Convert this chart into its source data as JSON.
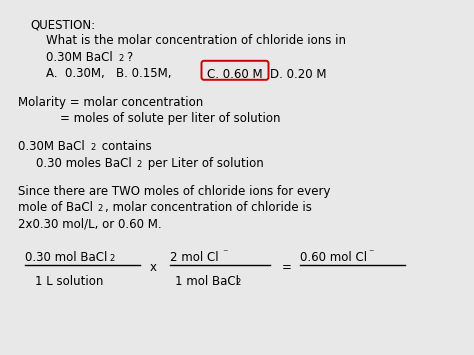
{
  "background_color": "#e8e8e8",
  "font_size": 8.5,
  "circle_color": "#cc0000",
  "lines_text": {
    "question": "QUESTION:",
    "q1": "What is the molar concentration of chloride ions in",
    "q2a": "0.30M BaCl",
    "q2b": "2",
    "q2c": "?",
    "q3a": "A.  0.30M,   B. 0.15M,",
    "q3b": "C. 0.60 M",
    "q3c": "D. 0.20 M",
    "m1": "Molarity = molar concentration",
    "m2": "= moles of solute per liter of solution",
    "b1a": "0.30M BaCl",
    "b1b": "2",
    "b1c": " contains",
    "b2a": "0.30 moles BaCl",
    "b2b": "2",
    "b2c": " per Liter of solution",
    "s1": "Since there are TWO moles of chloride ions for every",
    "s2a": "mole of BaCl",
    "s2b": "2",
    "s2c": ", molar concentration of chloride is",
    "s3": "2x0.30 mol/L, or 0.60 M.",
    "f1n": "0.30 mol BaCl",
    "f1n2": "2",
    "f1d": "1 L solution",
    "fx": "x",
    "f2n": "2 mol Cl",
    "f2nm": "⁻",
    "f2d": "1 mol BaCl",
    "f2d2": "2",
    "feq": "=",
    "f3n": "0.60 mol Cl",
    "f3nm": "⁻"
  }
}
